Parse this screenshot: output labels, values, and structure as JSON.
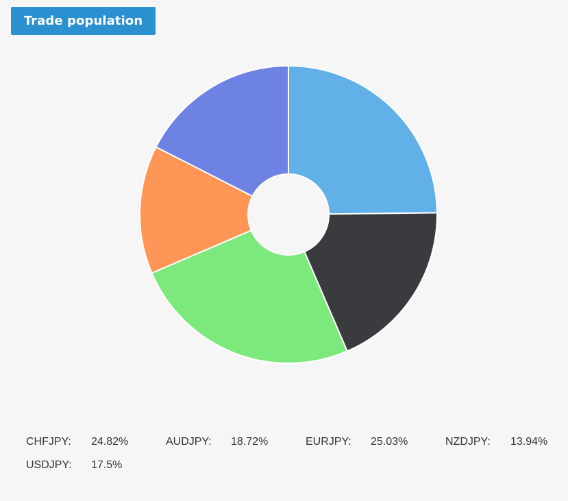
{
  "header": {
    "title": "Trade population"
  },
  "chart_data": {
    "type": "pie",
    "donut": true,
    "start_angle_deg": 0,
    "direction": "clockwise",
    "slices": [
      {
        "label": "CHFJPY:",
        "value": 24.82,
        "value_text": "24.82%",
        "color": "#62b0e8"
      },
      {
        "label": "AUDJPY:",
        "value": 18.72,
        "value_text": "18.72%",
        "color": "#3a3b3f"
      },
      {
        "label": "EURJPY:",
        "value": 25.03,
        "value_text": "25.03%",
        "color": "#7de87b"
      },
      {
        "label": "NZDJPY:",
        "value": 13.94,
        "value_text": "13.94%",
        "color": "#ff9655"
      },
      {
        "label": "USDJPY:",
        "value": 17.5,
        "value_text": "17.5%",
        "color": "#6d82e3"
      }
    ]
  }
}
